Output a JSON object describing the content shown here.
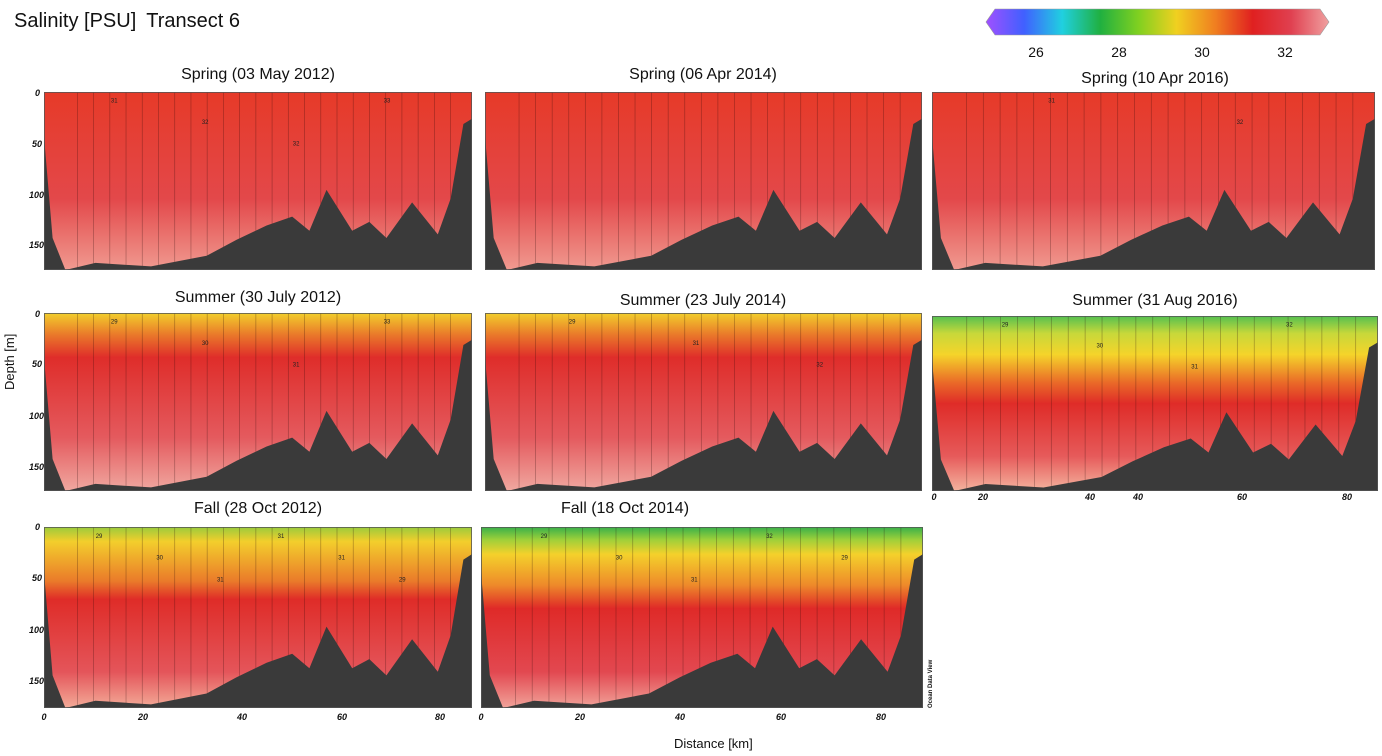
{
  "header": {
    "title": "Salinity [PSU]",
    "subtitle": "Transect 6"
  },
  "colorbar": {
    "ticks": [
      "26",
      "28",
      "30",
      "32"
    ],
    "colors": [
      "#a050ff",
      "#4060ff",
      "#20d0e0",
      "#20b040",
      "#80d020",
      "#f0d020",
      "#f08020",
      "#e02020",
      "#e04050",
      "#f0a0a0"
    ]
  },
  "axes": {
    "ylabel": "Depth [m]",
    "xlabel": "Distance [km]",
    "yticks": [
      "0",
      "50",
      "100",
      "150"
    ],
    "xticks": [
      "0",
      "20",
      "40",
      "60",
      "80"
    ]
  },
  "odv_label": "Ocean Data View",
  "chart_data": [
    {
      "type": "heatmap",
      "title": "Spring (03 May 2012)",
      "season": "spring",
      "contours": [
        "31",
        "32",
        "32",
        "33"
      ],
      "ylim": [
        175,
        0
      ],
      "xlim": [
        0,
        88
      ]
    },
    {
      "type": "heatmap",
      "title": "Spring (06 Apr 2014)",
      "season": "spring",
      "contours": [],
      "ylim": [
        175,
        0
      ],
      "xlim": [
        0,
        88
      ]
    },
    {
      "type": "heatmap",
      "title": "Spring (10 Apr 2016)",
      "season": "spring",
      "contours": [
        "31",
        "32"
      ],
      "ylim": [
        175,
        0
      ],
      "xlim": [
        0,
        88
      ]
    },
    {
      "type": "heatmap",
      "title": "Summer (30 July 2012)",
      "season": "summer",
      "contours": [
        "29",
        "30",
        "31",
        "33"
      ],
      "ylim": [
        175,
        0
      ],
      "xlim": [
        0,
        88
      ]
    },
    {
      "type": "heatmap",
      "title": "Summer (23 July 2014)",
      "season": "summer",
      "contours": [
        "29",
        "31",
        "32"
      ],
      "ylim": [
        175,
        0
      ],
      "xlim": [
        0,
        88
      ]
    },
    {
      "type": "heatmap",
      "title": "Summer (31 Aug 2016)",
      "season": "summer2016",
      "contours": [
        "29",
        "30",
        "31",
        "32"
      ],
      "ylim": [
        175,
        0
      ],
      "xlim": [
        0,
        88
      ]
    },
    {
      "type": "heatmap",
      "title": "Fall (28 Oct 2012)",
      "season": "fall",
      "contours": [
        "29",
        "30",
        "31",
        "31",
        "31",
        "29"
      ],
      "ylim": [
        175,
        0
      ],
      "xlim": [
        0,
        88
      ]
    },
    {
      "type": "heatmap",
      "title": "Fall (18 Oct 2014)",
      "season": "fall2014",
      "contours": [
        "29",
        "30",
        "31",
        "32",
        "29"
      ],
      "ylim": [
        175,
        0
      ],
      "xlim": [
        0,
        88
      ]
    }
  ]
}
